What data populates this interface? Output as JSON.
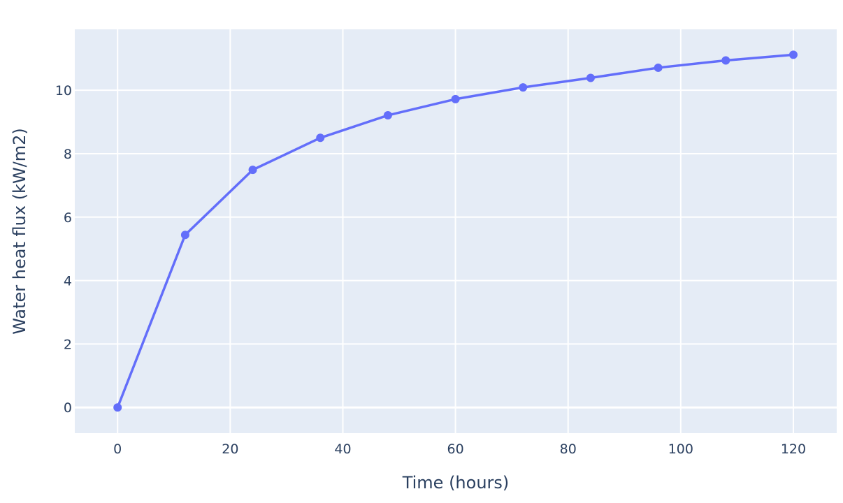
{
  "chart_data": {
    "type": "line",
    "title": "",
    "xlabel": "Time (hours)",
    "ylabel": "Water heat flux (kW/m2)",
    "x": [
      0,
      12,
      24,
      36,
      48,
      60,
      72,
      84,
      96,
      108,
      120
    ],
    "series": [
      {
        "values": [
          0,
          5.44,
          7.49,
          8.5,
          9.21,
          9.72,
          10.09,
          10.39,
          10.71,
          10.94,
          11.12
        ],
        "color": "#636efa",
        "mode": "lines+markers"
      }
    ],
    "xlim": [
      -7.6,
      127.7
    ],
    "ylim": [
      -0.81,
      11.92
    ],
    "xticks": [
      0,
      20,
      40,
      60,
      80,
      100,
      120
    ],
    "yticks": [
      0,
      2,
      4,
      6,
      8,
      10
    ],
    "grid": true,
    "plot_bgcolor": "#e5ecf6",
    "grid_color": "#ffffff",
    "text_color": "#2a3f5f"
  }
}
